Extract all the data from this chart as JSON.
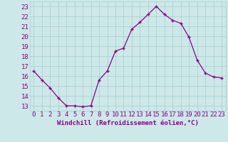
{
  "x": [
    0,
    1,
    2,
    3,
    4,
    5,
    6,
    7,
    8,
    9,
    10,
    11,
    12,
    13,
    14,
    15,
    16,
    17,
    18,
    19,
    20,
    21,
    22,
    23
  ],
  "y": [
    16.5,
    15.6,
    14.8,
    13.8,
    13.0,
    13.0,
    12.9,
    13.0,
    15.6,
    16.5,
    18.5,
    18.8,
    20.7,
    21.4,
    22.2,
    23.0,
    22.2,
    21.6,
    21.3,
    19.9,
    17.6,
    16.3,
    15.9,
    15.8
  ],
  "bg_color": "#cce8e8",
  "grid_color": "#aacccc",
  "line_color": "#880088",
  "marker": "+",
  "ylim": [
    12.5,
    23.5
  ],
  "yticks": [
    13,
    14,
    15,
    16,
    17,
    18,
    19,
    20,
    21,
    22,
    23
  ],
  "xticks": [
    0,
    1,
    2,
    3,
    4,
    5,
    6,
    7,
    8,
    9,
    10,
    11,
    12,
    13,
    14,
    15,
    16,
    17,
    18,
    19,
    20,
    21,
    22,
    23
  ],
  "xlabel": "Windchill (Refroidissement éolien,°C)",
  "tick_color": "#880088",
  "axis_label_color": "#880088",
  "tick_fontsize": 6.5,
  "xlabel_fontsize": 6.5
}
